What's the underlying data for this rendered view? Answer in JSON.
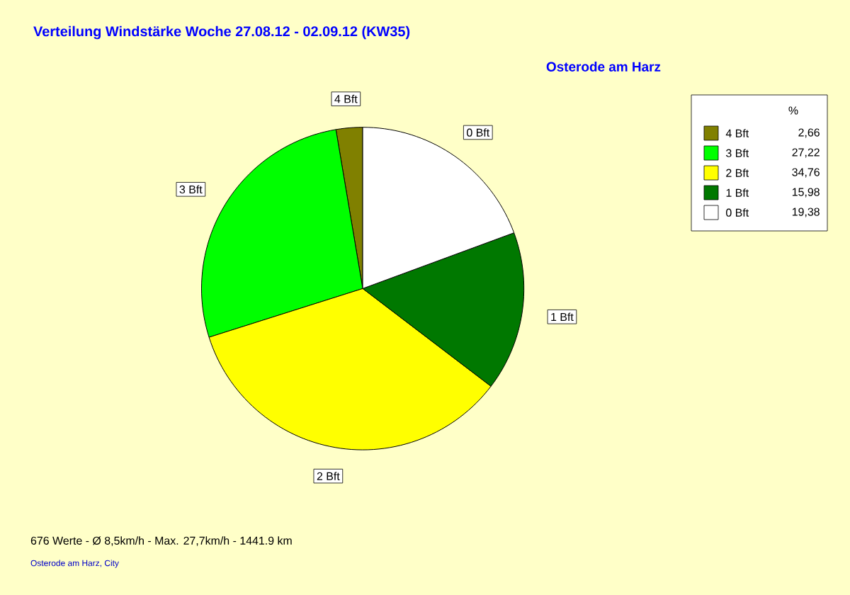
{
  "chart_data": {
    "type": "pie",
    "title": "Verteilung Windstärke  Woche 27.08.12 - 02.09.12 (KW35)",
    "subtitle": "Osterode am Harz",
    "legend_title": "%",
    "categories": [
      "4 Bft",
      "3 Bft",
      "2 Bft",
      "1 Bft",
      "0 Bft"
    ],
    "values": [
      2.66,
      27.22,
      34.76,
      15.98,
      19.38
    ],
    "value_labels": [
      "2,66",
      "27,22",
      "34,76",
      "15,98",
      "19,38"
    ],
    "colors": [
      "#808000",
      "#00ff00",
      "#ffff00",
      "#007800",
      "#ffffff"
    ],
    "legend": "top right",
    "annotations": [
      "676 Werte  -  Ø 8,5km/h  -  Max. 27,7km/h  -  1441.9 km",
      "Osterode am Harz, City"
    ]
  }
}
